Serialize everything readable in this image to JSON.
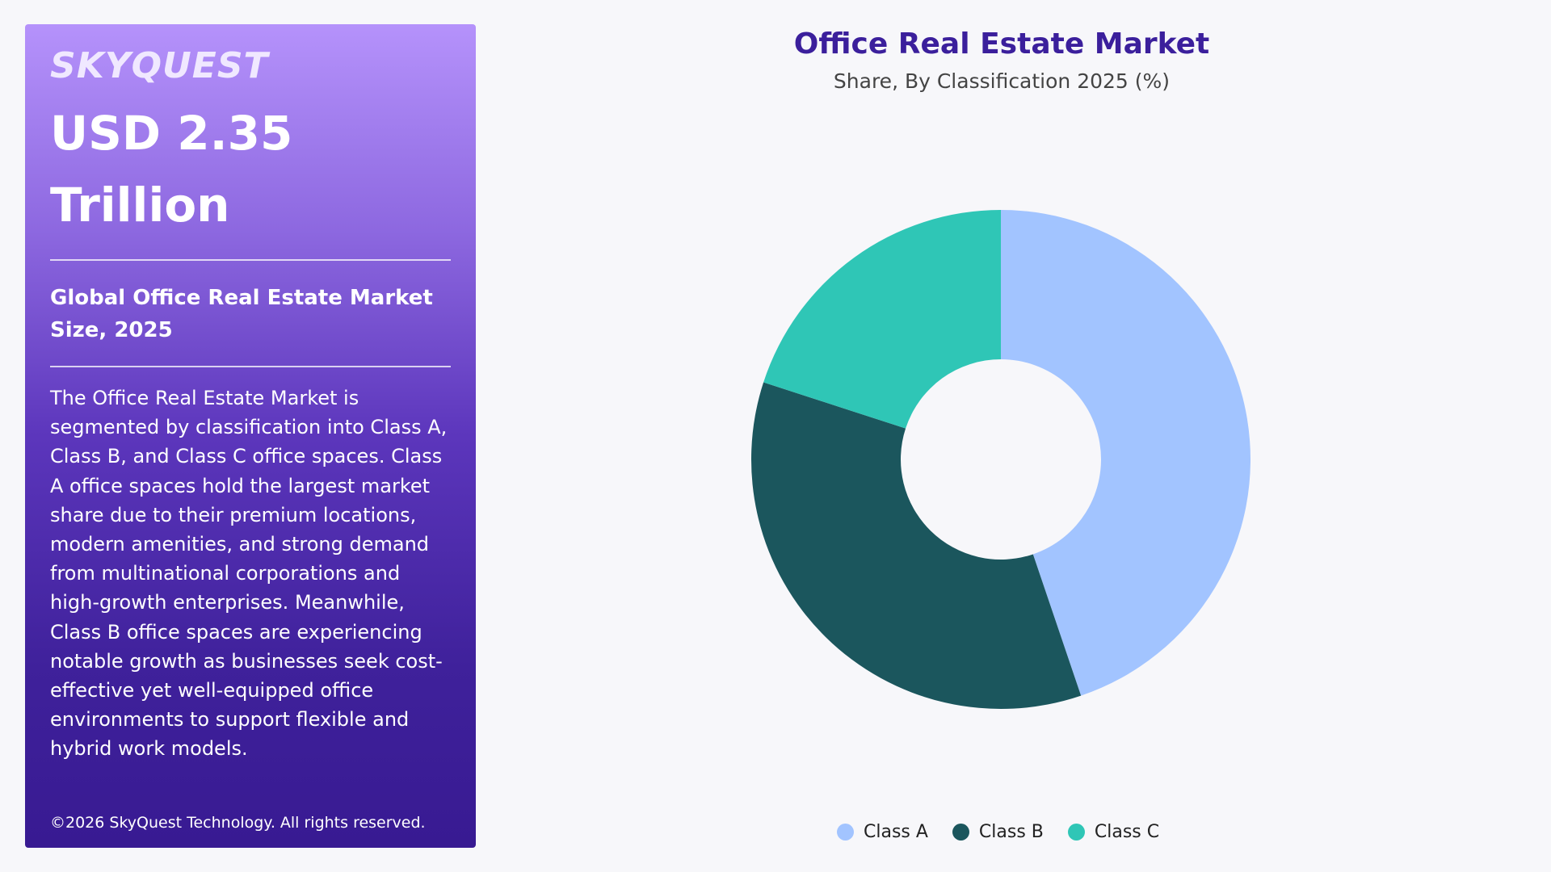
{
  "panel": {
    "brand": "SKYQUEST",
    "big_value": "USD 2.35 Trillion",
    "market_title": "Global Office Real Estate Market Size, 2025",
    "description": "The Office Real Estate Market is segmented by classification into Class A, Class B, and Class C office spaces. Class A office spaces hold the largest market share due to their premium locations, modern amenities, and strong demand from multinational corporations and high-growth enterprises. Meanwhile, Class B office spaces are experiencing notable growth as businesses seek cost-effective yet well-equipped office environments to support flexible and hybrid work models.",
    "copyright": "©2026 SkyQuest Technology. All rights reserved."
  },
  "chart_data": {
    "type": "pie",
    "title": "Office Real Estate Market",
    "subtitle": "Share, By Classification 2025 (%)",
    "categories": [
      "Class A",
      "Class B",
      "Class C"
    ],
    "values": [
      44.8,
      35.2,
      20.0
    ],
    "colors": [
      "#a2c4ff",
      "#1b565d",
      "#2fc6b6"
    ],
    "donut": true,
    "legend_position": "bottom"
  }
}
